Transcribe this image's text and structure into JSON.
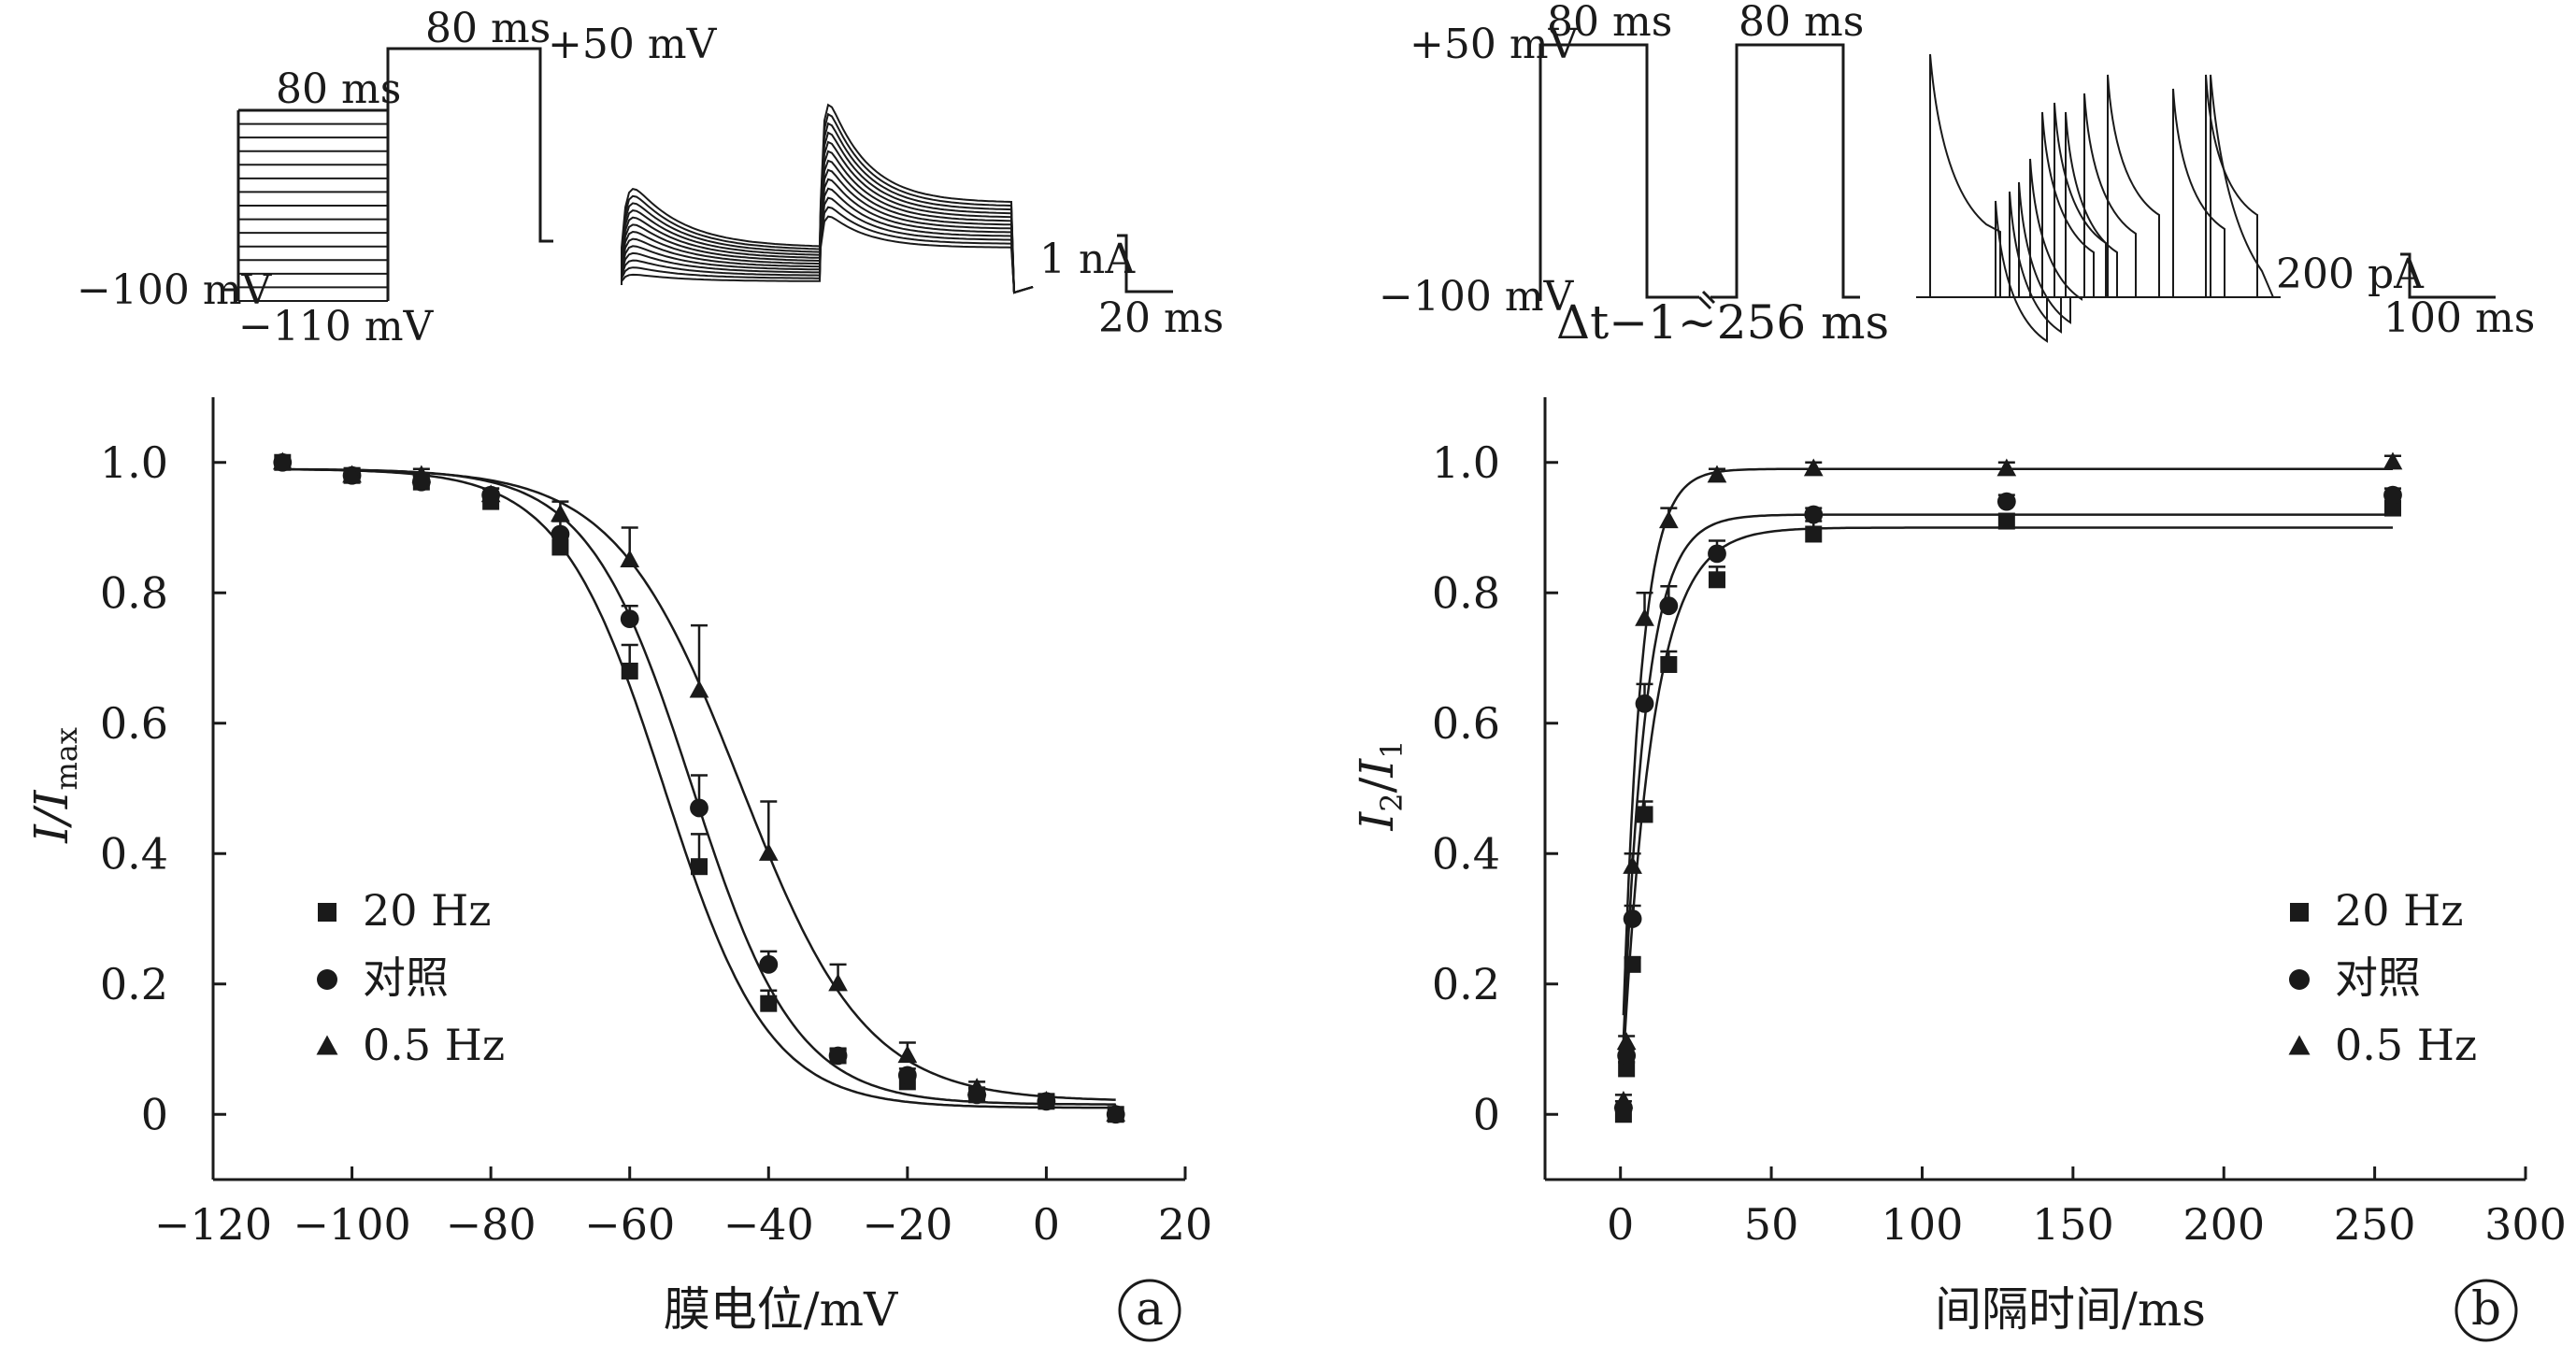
{
  "chart_data": [
    {
      "type": "scatter",
      "panel_label": "a",
      "xlabel": "膜电位/mV",
      "ylabel": {
        "main": "I/I",
        "sub": "max"
      },
      "xlim": [
        -120,
        20
      ],
      "ylim": [
        -0.1,
        1.1
      ],
      "xticks": [
        -120,
        -100,
        -80,
        -60,
        -40,
        -20,
        0,
        20
      ],
      "xtick_labels": [
        "−120",
        "−100",
        "−80",
        "−60",
        "−40",
        "−20",
        "0",
        "20"
      ],
      "yticks": [
        0,
        0.2,
        0.4,
        0.6,
        0.8,
        1.0
      ],
      "ytick_labels": [
        "0",
        "0.2",
        "0.4",
        "0.6",
        "0.8",
        "1.0"
      ],
      "grid": false,
      "legend_position": "bottom-left",
      "series": [
        {
          "name": "20 Hz",
          "marker": "square",
          "x": [
            -110,
            -100,
            -90,
            -80,
            -70,
            -60,
            -50,
            -40,
            -30,
            -20,
            -10,
            0,
            10
          ],
          "y": [
            1.0,
            0.98,
            0.97,
            0.94,
            0.87,
            0.68,
            0.38,
            0.17,
            0.09,
            0.05,
            0.03,
            0.02,
            0.0
          ],
          "err": [
            0,
            0.01,
            0.01,
            0.01,
            0.02,
            0.04,
            0.05,
            0.02,
            0.01,
            0.01,
            0.01,
            0.01,
            0
          ],
          "fit": {
            "v_half": -55,
            "k": 7.5,
            "top": 0.99,
            "bottom": 0.01
          }
        },
        {
          "name": "对照",
          "marker": "circle",
          "x": [
            -110,
            -100,
            -90,
            -80,
            -70,
            -60,
            -50,
            -40,
            -30,
            -20,
            -10,
            0,
            10
          ],
          "y": [
            1.0,
            0.98,
            0.97,
            0.95,
            0.89,
            0.76,
            0.47,
            0.23,
            0.09,
            0.06,
            0.03,
            0.02,
            0.0
          ],
          "err": [
            0,
            0.01,
            0.01,
            0.01,
            0.02,
            0.02,
            0.05,
            0.02,
            0.01,
            0.01,
            0.01,
            0.01,
            0
          ],
          "fit": {
            "v_half": -51,
            "k": 7.5,
            "top": 0.99,
            "bottom": 0.015
          }
        },
        {
          "name": "0.5 Hz",
          "marker": "triangle",
          "x": [
            -110,
            -100,
            -90,
            -80,
            -70,
            -60,
            -50,
            -40,
            -30,
            -20,
            -10,
            0,
            10
          ],
          "y": [
            1.0,
            0.98,
            0.98,
            0.95,
            0.92,
            0.85,
            0.65,
            0.4,
            0.2,
            0.09,
            0.04,
            0.02,
            0.0
          ],
          "err": [
            0,
            0.01,
            0.01,
            0.01,
            0.02,
            0.05,
            0.1,
            0.08,
            0.03,
            0.02,
            0.01,
            0.01,
            0
          ],
          "fit": {
            "v_half": -44,
            "k": 9,
            "top": 0.99,
            "bottom": 0.02
          }
        }
      ],
      "inset": {
        "protocol": {
          "top_duration": "80 ms",
          "step_duration": "80 ms",
          "top_voltage": "+50 mV",
          "hold_voltage": "−100 mV",
          "min_voltage": "−110 mV"
        },
        "scale_bar": {
          "current": "1 nA",
          "time": "20 ms"
        }
      }
    },
    {
      "type": "scatter",
      "panel_label": "b",
      "xlabel": "间隔时间/ms",
      "ylabel": {
        "main1": "I",
        "sub1": "2",
        "slash": "/",
        "main2": "I",
        "sub2": "1"
      },
      "xlim": [
        -25,
        300
      ],
      "ylim": [
        -0.1,
        1.1
      ],
      "xticks": [
        0,
        50,
        100,
        150,
        200,
        250,
        300
      ],
      "xtick_labels": [
        "0",
        "50",
        "100",
        "150",
        "200",
        "250",
        "300"
      ],
      "yticks": [
        0,
        0.2,
        0.4,
        0.6,
        0.8,
        1.0
      ],
      "ytick_labels": [
        "0",
        "0.2",
        "0.4",
        "0.6",
        "0.8",
        "1.0"
      ],
      "grid": false,
      "legend_position": "bottom-right",
      "series": [
        {
          "name": "20 Hz",
          "marker": "square",
          "x": [
            1,
            2,
            4,
            8,
            16,
            32,
            64,
            128,
            256
          ],
          "y": [
            0.0,
            0.07,
            0.23,
            0.46,
            0.69,
            0.82,
            0.89,
            0.91,
            0.93
          ],
          "err": [
            0.01,
            0.01,
            0.01,
            0.02,
            0.02,
            0.02,
            0.02,
            0.01,
            0.01
          ],
          "fit": {
            "plateau": 0.9,
            "tau": 10
          }
        },
        {
          "name": "对照",
          "marker": "circle",
          "x": [
            1,
            2,
            4,
            8,
            16,
            32,
            64,
            128,
            256
          ],
          "y": [
            0.01,
            0.09,
            0.3,
            0.63,
            0.78,
            0.86,
            0.92,
            0.94,
            0.95
          ],
          "err": [
            0.01,
            0.01,
            0.02,
            0.03,
            0.03,
            0.02,
            0.01,
            0.01,
            0.01
          ],
          "fit": {
            "plateau": 0.92,
            "tau": 7.5
          }
        },
        {
          "name": "0.5 Hz",
          "marker": "triangle",
          "x": [
            1,
            2,
            4,
            8,
            16,
            32,
            64,
            128,
            256
          ],
          "y": [
            0.02,
            0.11,
            0.38,
            0.76,
            0.91,
            0.98,
            0.99,
            0.99,
            1.0
          ],
          "err": [
            0.01,
            0.01,
            0.02,
            0.04,
            0.02,
            0.01,
            0.01,
            0.01,
            0.01
          ],
          "fit": {
            "plateau": 0.99,
            "tau": 6
          }
        }
      ],
      "inset": {
        "protocol": {
          "pulse1_duration": "80 ms",
          "pulse2_duration": "80 ms",
          "top_voltage": "+50 mV",
          "hold_voltage": "−100 mV",
          "interval": "Δt−1~256 ms"
        },
        "scale_bar": {
          "current": "200 pA",
          "time": "100 ms"
        }
      }
    }
  ]
}
